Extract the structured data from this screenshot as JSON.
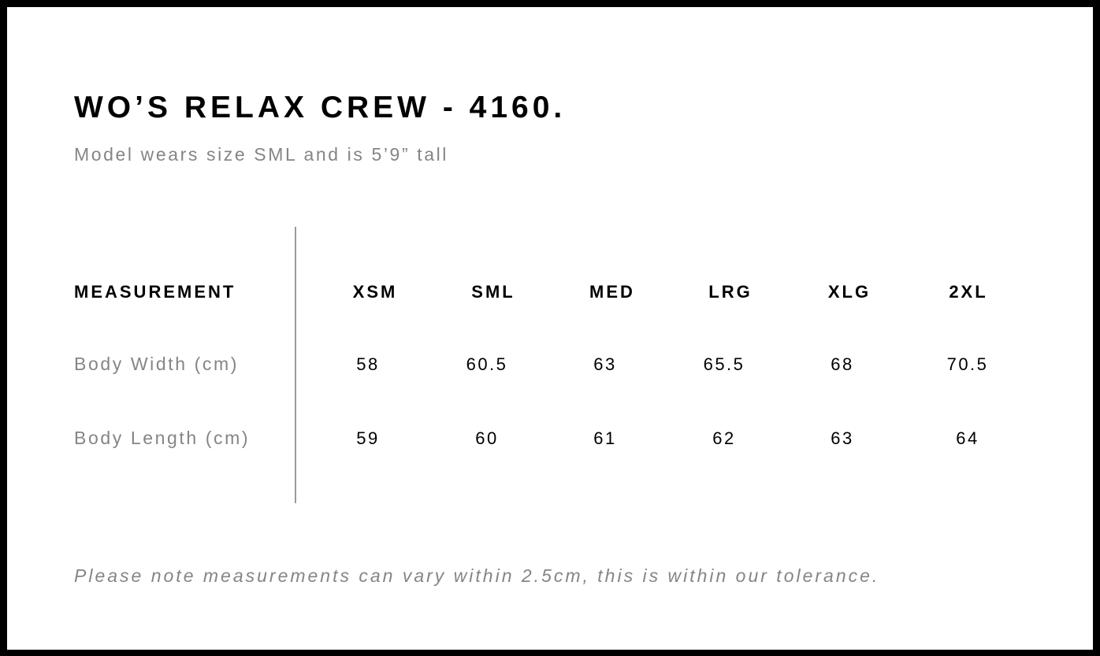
{
  "title": "WO’S RELAX CREW - 4160.",
  "subtitle": "Model wears size SML and is 5’9” tall",
  "table": {
    "header_label": "MEASUREMENT",
    "sizes": [
      "XSM",
      "SML",
      "MED",
      "LRG",
      "XLG",
      "2XL"
    ],
    "rows": [
      {
        "label": "Body Width (cm)",
        "values": [
          "58",
          "60.5",
          "63",
          "65.5",
          "68",
          "70.5"
        ]
      },
      {
        "label": "Body Length (cm)",
        "values": [
          "59",
          "60",
          "61",
          "62",
          "63",
          "64"
        ]
      }
    ]
  },
  "note": "Please note measurements can vary within 2.5cm, this is within our tolerance."
}
